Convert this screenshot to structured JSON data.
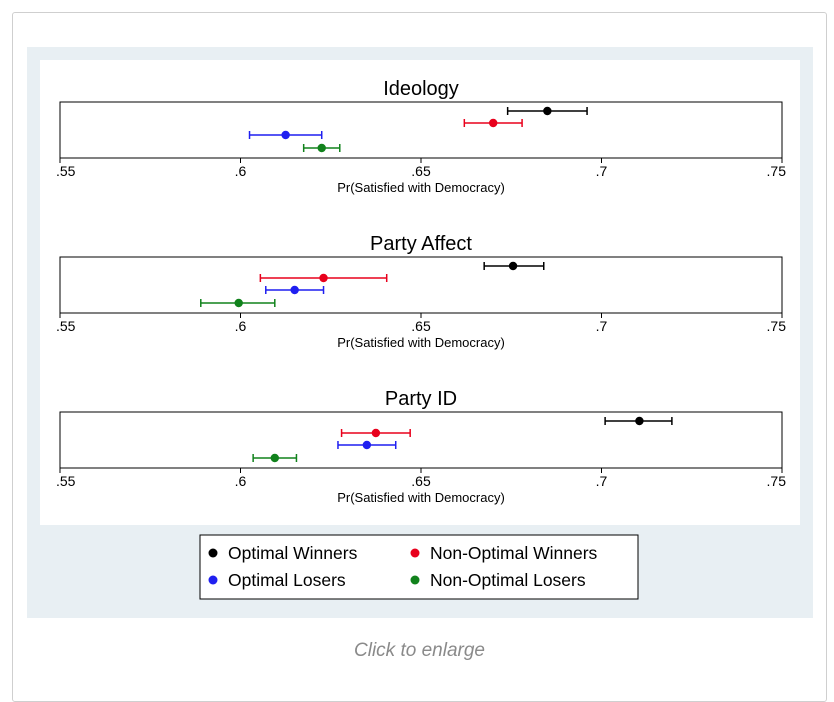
{
  "caption": "Click to enlarge",
  "colors": {
    "Optimal Winners": "#000000",
    "Non-Optimal Winners": "#e8001c",
    "Optimal Losers": "#1f1ff0",
    "Non-Optimal Losers": "#11821c"
  },
  "chart_data": {
    "type": "scatter",
    "subtype": "coefficient plot with confidence intervals",
    "legend": {
      "placement": "bottom",
      "entries": [
        "Optimal Winners",
        "Non-Optimal Winners",
        "Optimal Losers",
        "Non-Optimal Losers"
      ]
    },
    "panels": [
      {
        "title": "Ideology",
        "xlabel": "Pr(Satisfied with Democracy)",
        "xlim": [
          0.55,
          0.75
        ],
        "xticks": [
          0.55,
          0.6,
          0.65,
          0.7,
          0.75
        ],
        "xtick_labels": [
          ".55",
          ".6",
          ".65",
          ".7",
          ".75"
        ],
        "series": [
          {
            "name": "Optimal Winners",
            "estimate": 0.685,
            "lower": 0.674,
            "upper": 0.696
          },
          {
            "name": "Non-Optimal Winners",
            "estimate": 0.67,
            "lower": 0.662,
            "upper": 0.678
          },
          {
            "name": "Optimal Losers",
            "estimate": 0.6125,
            "lower": 0.6025,
            "upper": 0.6225
          },
          {
            "name": "Non-Optimal Losers",
            "estimate": 0.6225,
            "lower": 0.6175,
            "upper": 0.6275
          }
        ]
      },
      {
        "title": "Party Affect",
        "xlabel": "Pr(Satisfied with Democracy)",
        "xlim": [
          0.55,
          0.75
        ],
        "xticks": [
          0.55,
          0.6,
          0.65,
          0.7,
          0.75
        ],
        "xtick_labels": [
          ".55",
          ".6",
          ".65",
          ".7",
          ".75"
        ],
        "series": [
          {
            "name": "Optimal Winners",
            "estimate": 0.6755,
            "lower": 0.6675,
            "upper": 0.684
          },
          {
            "name": "Non-Optimal Winners",
            "estimate": 0.623,
            "lower": 0.6055,
            "upper": 0.6405
          },
          {
            "name": "Optimal Losers",
            "estimate": 0.615,
            "lower": 0.607,
            "upper": 0.623
          },
          {
            "name": "Non-Optimal Losers",
            "estimate": 0.5995,
            "lower": 0.589,
            "upper": 0.6095
          }
        ]
      },
      {
        "title": "Party ID",
        "xlabel": "Pr(Satisfied with Democracy)",
        "xlim": [
          0.55,
          0.75
        ],
        "xticks": [
          0.55,
          0.6,
          0.65,
          0.7,
          0.75
        ],
        "xtick_labels": [
          ".55",
          ".6",
          ".65",
          ".7",
          ".75"
        ],
        "series": [
          {
            "name": "Optimal Winners",
            "estimate": 0.7105,
            "lower": 0.701,
            "upper": 0.7195
          },
          {
            "name": "Non-Optimal Winners",
            "estimate": 0.6375,
            "lower": 0.628,
            "upper": 0.647
          },
          {
            "name": "Optimal Losers",
            "estimate": 0.635,
            "lower": 0.627,
            "upper": 0.643
          },
          {
            "name": "Non-Optimal Losers",
            "estimate": 0.6095,
            "lower": 0.6035,
            "upper": 0.6155
          }
        ]
      }
    ]
  }
}
